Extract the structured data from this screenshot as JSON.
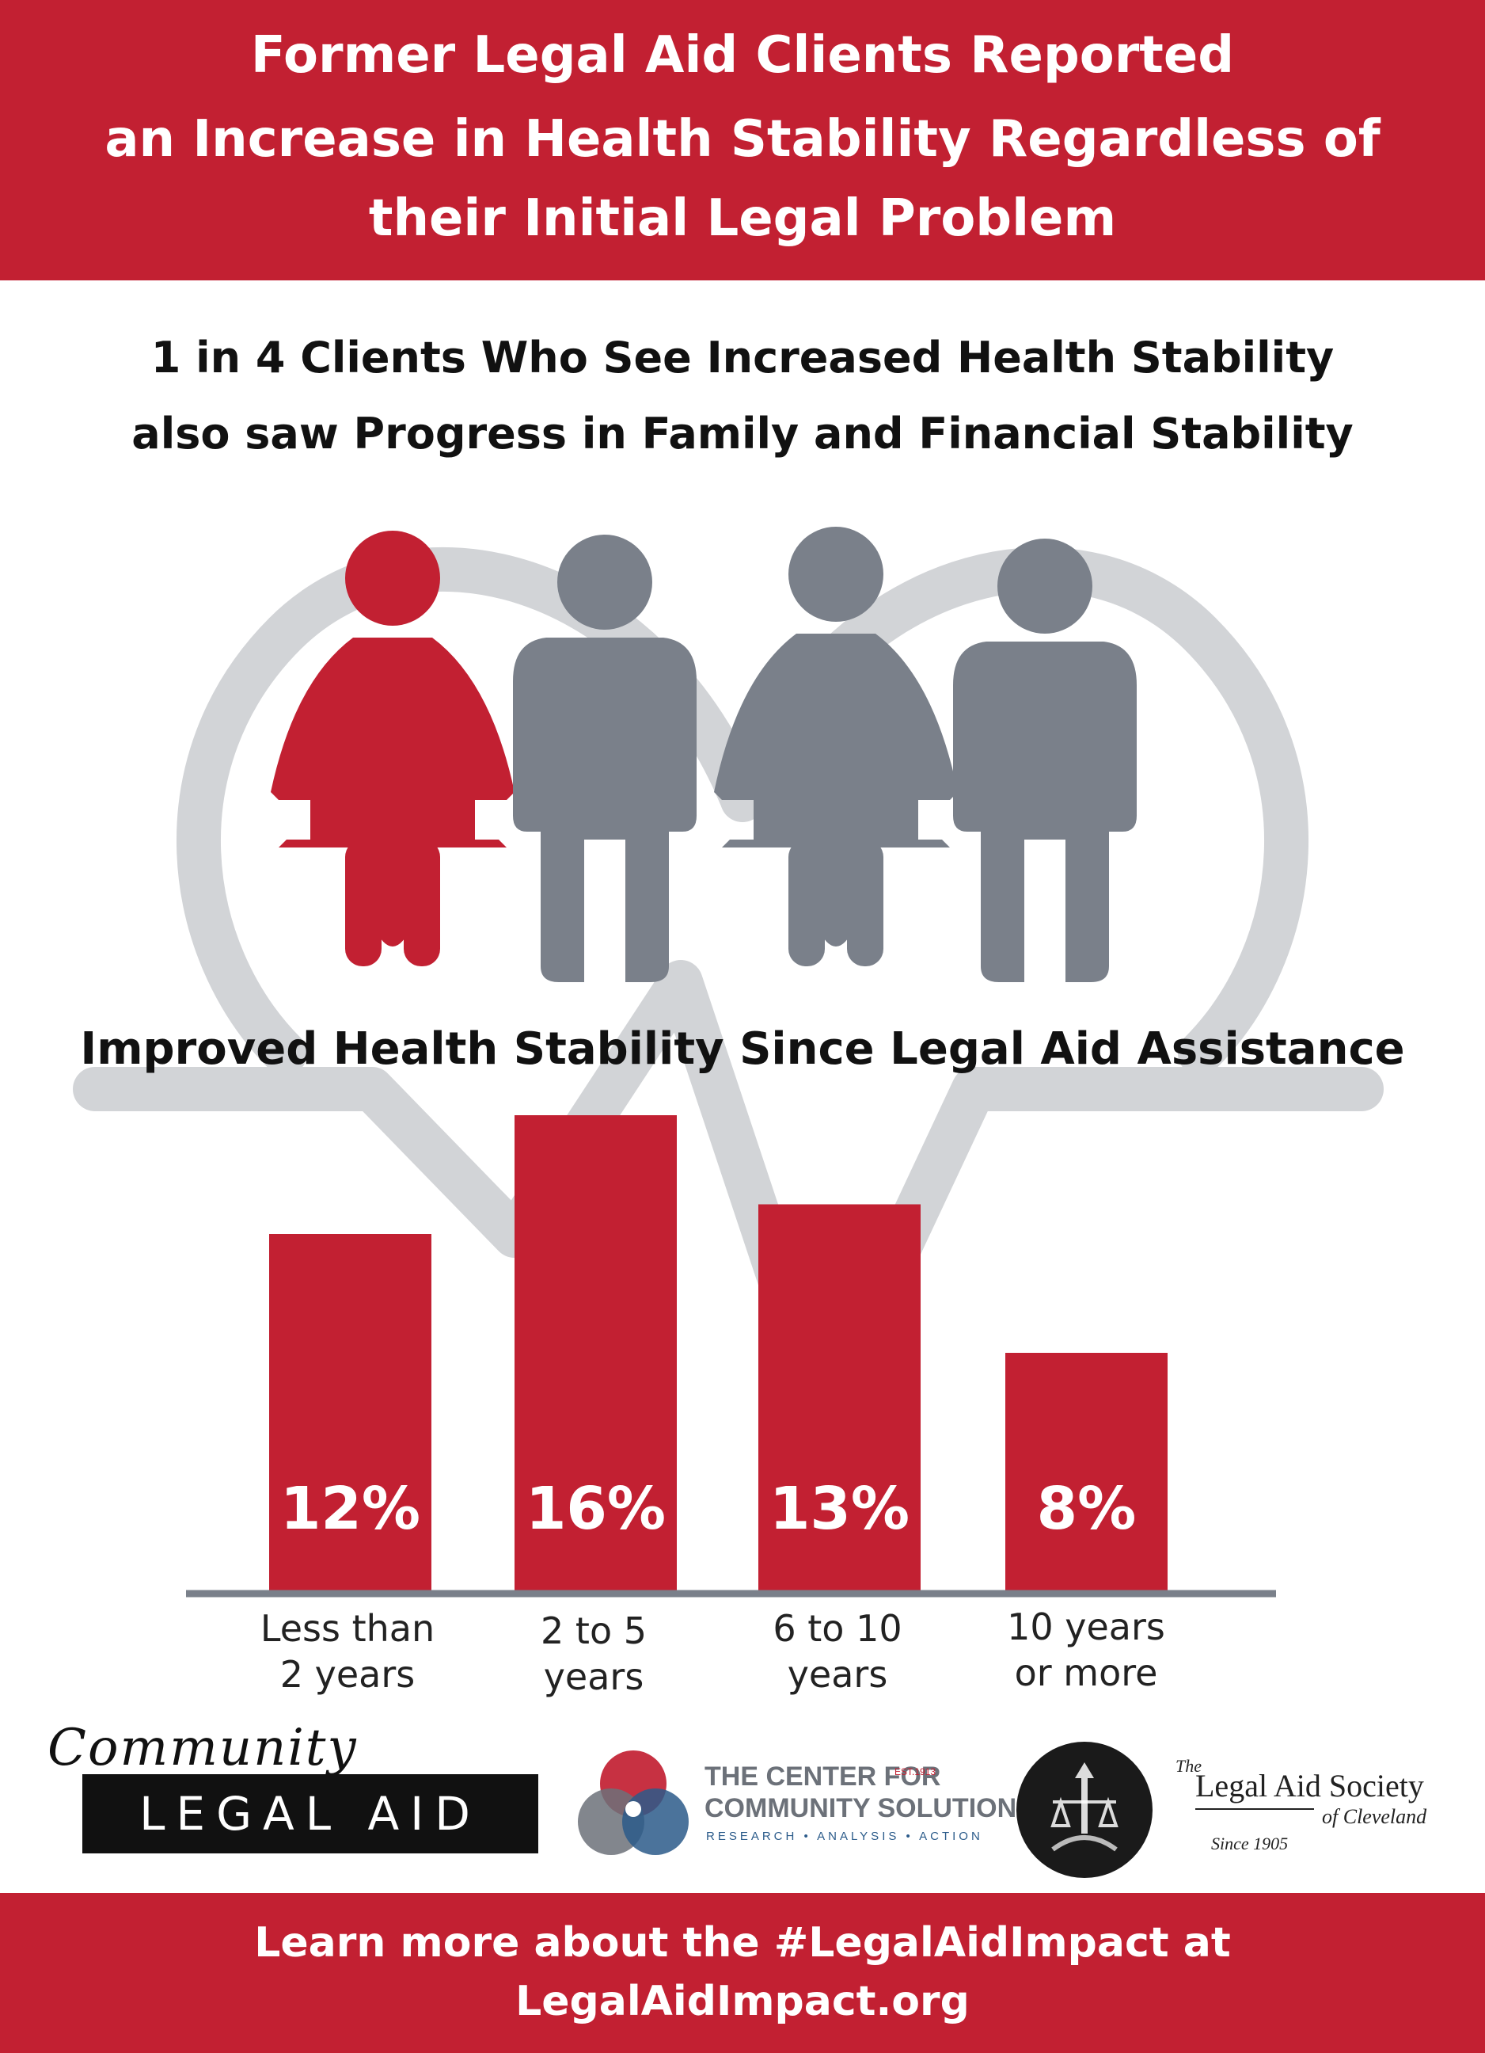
{
  "header": {
    "title_lines": [
      "Former Legal Aid Clients Reported",
      "an Increase in Health Stability Regardless of",
      "their Initial Legal Problem"
    ]
  },
  "subtitle": {
    "lines": [
      "1 in 4 Clients Who See Increased Health Stability",
      "also saw Progress in Family and Financial Stability"
    ]
  },
  "pictogram": {
    "highlighted_count": 1,
    "total_count": 4,
    "colors": {
      "highlight": "#c22032",
      "other": "#7a808a"
    }
  },
  "chart_data": {
    "type": "bar",
    "title": "Improved Health Stability Since Legal Aid Assistance",
    "categories": [
      [
        "Less than",
        "2 years"
      ],
      [
        "2 to 5",
        "years"
      ],
      [
        "6 to 10",
        "years"
      ],
      [
        "10 years",
        "or more"
      ]
    ],
    "values": [
      12,
      16,
      13,
      8
    ],
    "data_labels": [
      "12%",
      "16%",
      "13%",
      "8%"
    ],
    "unit": "%",
    "ylim": [
      0,
      16
    ],
    "grid": false,
    "bar_color": "#c22032",
    "axis_color": "#7a808a"
  },
  "logos": {
    "community": {
      "script": "Community",
      "block": "LEGAL AID"
    },
    "ccs": {
      "line1": "THE CENTER FOR",
      "line2": "COMMUNITY SOLUTIONS",
      "tagline": "RESEARCH • ANALYSIS • ACTION",
      "est": "EST.1913"
    },
    "las": {
      "the": "The",
      "name": "Legal Aid Society",
      "city": "of Cleveland",
      "since": "Since 1905"
    }
  },
  "footer": {
    "lines": [
      "Learn more about the #LegalAidImpact at",
      "LegalAidImpact.org"
    ]
  },
  "colors": {
    "brand_red": "#c22032",
    "gray": "#7a808a",
    "heart_gray": "#d2d4d7"
  }
}
